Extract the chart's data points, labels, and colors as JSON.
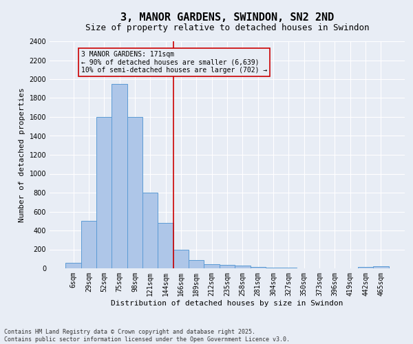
{
  "title": "3, MANOR GARDENS, SWINDON, SN2 2ND",
  "subtitle": "Size of property relative to detached houses in Swindon",
  "xlabel": "Distribution of detached houses by size in Swindon",
  "ylabel": "Number of detached properties",
  "footer_line1": "Contains HM Land Registry data © Crown copyright and database right 2025.",
  "footer_line2": "Contains public sector information licensed under the Open Government Licence v3.0.",
  "categories": [
    "6sqm",
    "29sqm",
    "52sqm",
    "75sqm",
    "98sqm",
    "121sqm",
    "144sqm",
    "166sqm",
    "189sqm",
    "212sqm",
    "235sqm",
    "258sqm",
    "281sqm",
    "304sqm",
    "327sqm",
    "350sqm",
    "373sqm",
    "396sqm",
    "419sqm",
    "442sqm",
    "465sqm"
  ],
  "bar_values": [
    60,
    500,
    1600,
    1950,
    1600,
    800,
    480,
    200,
    90,
    45,
    35,
    30,
    15,
    10,
    5,
    2,
    1,
    0,
    0,
    15,
    25
  ],
  "bar_color": "#aec6e8",
  "bar_edge_color": "#5b9bd5",
  "bg_color": "#e8edf5",
  "grid_color": "#ffffff",
  "ylim": [
    0,
    2400
  ],
  "yticks": [
    0,
    200,
    400,
    600,
    800,
    1000,
    1200,
    1400,
    1600,
    1800,
    2000,
    2200,
    2400
  ],
  "annotation_text": "3 MANOR GARDENS: 171sqm\n← 90% of detached houses are smaller (6,639)\n10% of semi-detached houses are larger (702) →",
  "vline_color": "#cc0000",
  "annotation_box_color": "#cc0000",
  "title_fontsize": 11,
  "subtitle_fontsize": 9,
  "axis_label_fontsize": 8,
  "tick_fontsize": 7,
  "annotation_fontsize": 7,
  "footer_fontsize": 6
}
